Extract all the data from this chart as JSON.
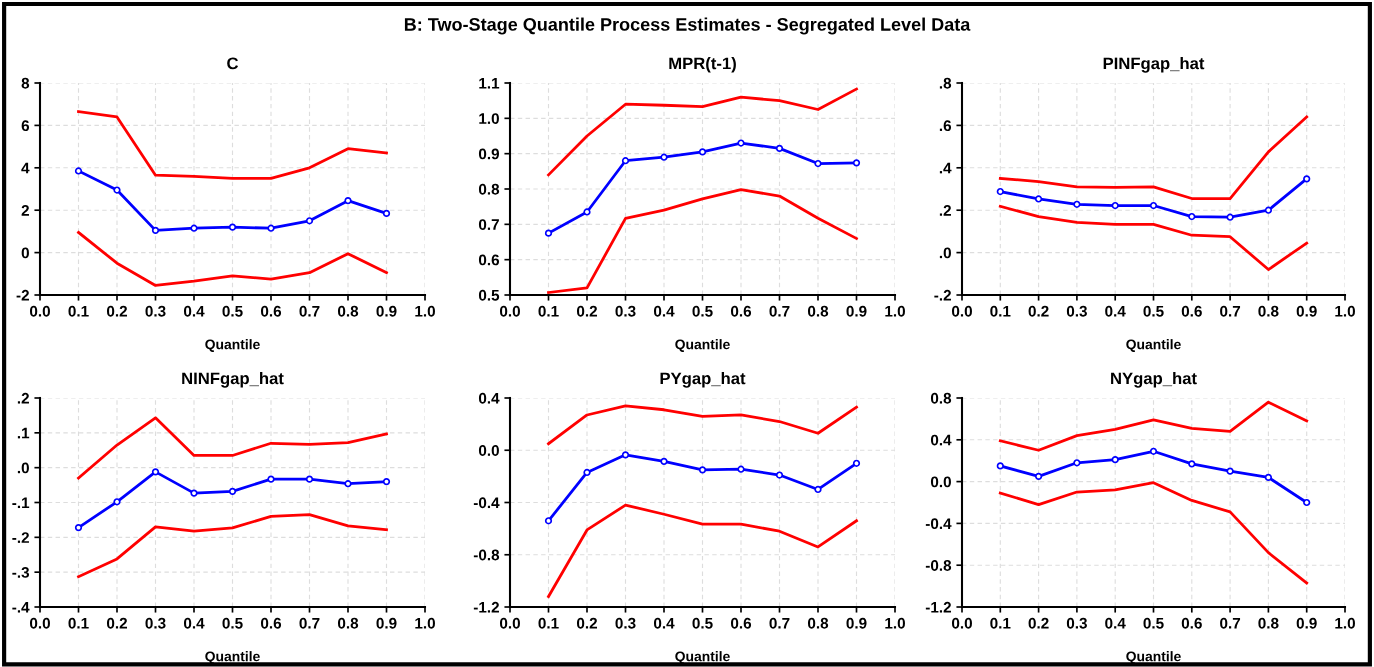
{
  "chart_data": [
    {
      "type": "line",
      "title": "C",
      "xlabel": "Quantile",
      "annotations": [
        "B: Two-Stage Quantile Process Estimates - Segregated Level Data"
      ],
      "x": [
        0.1,
        0.2,
        0.3,
        0.4,
        0.5,
        0.6,
        0.7,
        0.8,
        0.9
      ],
      "grid": true,
      "legend": false,
      "xlim": [
        0.0,
        1.0
      ],
      "xticks": [
        {
          "value": 0.0,
          "label": "0.0"
        },
        {
          "value": 0.1,
          "label": "0.1"
        },
        {
          "value": 0.2,
          "label": "0.2"
        },
        {
          "value": 0.3,
          "label": "0.3"
        },
        {
          "value": 0.4,
          "label": "0.4"
        },
        {
          "value": 0.5,
          "label": "0.5"
        },
        {
          "value": 0.6,
          "label": "0.6"
        },
        {
          "value": 0.7,
          "label": "0.7"
        },
        {
          "value": 0.8,
          "label": "0.8"
        },
        {
          "value": 0.9,
          "label": "0.9"
        },
        {
          "value": 1.0,
          "label": "1.0"
        }
      ],
      "ylim": [
        -2,
        8
      ],
      "yticks": [
        -2,
        0,
        2,
        4,
        6,
        8
      ],
      "series": [
        {
          "color": "#ff0000",
          "marker": "none",
          "values": [
            6.65,
            6.4,
            3.65,
            3.6,
            3.5,
            3.5,
            4.0,
            4.9,
            4.7
          ]
        },
        {
          "color": "#0000ff",
          "marker": "circle",
          "values": [
            3.85,
            2.95,
            1.05,
            1.15,
            1.2,
            1.15,
            1.5,
            2.45,
            1.85
          ]
        },
        {
          "color": "#ff0000",
          "marker": "none",
          "values": [
            0.95,
            -0.5,
            -1.55,
            -1.35,
            -1.1,
            -1.25,
            -0.95,
            -0.05,
            -0.95
          ]
        }
      ]
    },
    {
      "type": "line",
      "title": "MPR(t-1)",
      "xlabel": "Quantile",
      "x": [
        0.1,
        0.2,
        0.3,
        0.4,
        0.5,
        0.6,
        0.7,
        0.8,
        0.9
      ],
      "grid": true,
      "legend": false,
      "xlim": [
        0.0,
        1.0
      ],
      "xticks": [
        {
          "value": 0.0,
          "label": "0.0"
        },
        {
          "value": 0.1,
          "label": "0.1"
        },
        {
          "value": 0.2,
          "label": "0.2"
        },
        {
          "value": 0.3,
          "label": "0.3"
        },
        {
          "value": 0.4,
          "label": "0.4"
        },
        {
          "value": 0.5,
          "label": "0.5"
        },
        {
          "value": 0.6,
          "label": "0.6"
        },
        {
          "value": 0.7,
          "label": "0.7"
        },
        {
          "value": 0.8,
          "label": "0.8"
        },
        {
          "value": 0.9,
          "label": "0.9"
        },
        {
          "value": 1.0,
          "label": "1.0"
        }
      ],
      "ylim": [
        0.5,
        1.1
      ],
      "yticks": [
        {
          "value": 0.5,
          "label": "0.5"
        },
        {
          "value": 0.6,
          "label": "0.6"
        },
        {
          "value": 0.7,
          "label": "0.7"
        },
        {
          "value": 0.8,
          "label": "0.8"
        },
        {
          "value": 0.9,
          "label": "0.9"
        },
        {
          "value": 1.0,
          "label": "1.0"
        },
        {
          "value": 1.1,
          "label": "1.1"
        }
      ],
      "series": [
        {
          "color": "#ff0000",
          "marker": "none",
          "values": [
            0.84,
            0.95,
            1.04,
            1.037,
            1.033,
            1.06,
            1.05,
            1.025,
            1.083
          ]
        },
        {
          "color": "#0000ff",
          "marker": "circle",
          "values": [
            0.675,
            0.735,
            0.88,
            0.89,
            0.905,
            0.93,
            0.915,
            0.872,
            0.874
          ]
        },
        {
          "color": "#ff0000",
          "marker": "none",
          "values": [
            0.507,
            0.52,
            0.717,
            0.74,
            0.772,
            0.798,
            0.78,
            0.717,
            0.66
          ]
        }
      ]
    },
    {
      "type": "line",
      "title": "PINFgap_hat",
      "xlabel": "Quantile",
      "x": [
        0.1,
        0.2,
        0.3,
        0.4,
        0.5,
        0.6,
        0.7,
        0.8,
        0.9
      ],
      "grid": true,
      "legend": false,
      "xlim": [
        0.0,
        1.0
      ],
      "xticks": [
        {
          "value": 0.0,
          "label": "0.0"
        },
        {
          "value": 0.1,
          "label": "0.1"
        },
        {
          "value": 0.2,
          "label": "0.2"
        },
        {
          "value": 0.3,
          "label": "0.3"
        },
        {
          "value": 0.4,
          "label": "0.4"
        },
        {
          "value": 0.5,
          "label": "0.5"
        },
        {
          "value": 0.6,
          "label": "0.6"
        },
        {
          "value": 0.7,
          "label": "0.7"
        },
        {
          "value": 0.8,
          "label": "0.8"
        },
        {
          "value": 0.9,
          "label": "0.9"
        },
        {
          "value": 1.0,
          "label": "1.0"
        }
      ],
      "ylim": [
        -0.2,
        0.8
      ],
      "yticks": [
        {
          "value": -0.2,
          "label": "-.2"
        },
        {
          "value": 0.0,
          "label": ".0"
        },
        {
          "value": 0.2,
          "label": ".2"
        },
        {
          "value": 0.4,
          "label": ".4"
        },
        {
          "value": 0.6,
          "label": ".6"
        },
        {
          "value": 0.8,
          "label": ".8"
        }
      ],
      "series": [
        {
          "color": "#ff0000",
          "marker": "none",
          "values": [
            0.35,
            0.335,
            0.31,
            0.308,
            0.31,
            0.255,
            0.255,
            0.475,
            0.64
          ]
        },
        {
          "color": "#0000ff",
          "marker": "circle",
          "values": [
            0.288,
            0.253,
            0.228,
            0.222,
            0.222,
            0.17,
            0.167,
            0.2,
            0.348
          ]
        },
        {
          "color": "#ff0000",
          "marker": "none",
          "values": [
            0.218,
            0.17,
            0.143,
            0.133,
            0.133,
            0.082,
            0.075,
            -0.08,
            0.045
          ]
        }
      ]
    },
    {
      "type": "line",
      "title": "NINFgap_hat",
      "xlabel": "Quantile",
      "x": [
        0.1,
        0.2,
        0.3,
        0.4,
        0.5,
        0.6,
        0.7,
        0.8,
        0.9
      ],
      "grid": true,
      "legend": false,
      "xlim": [
        0.0,
        1.0
      ],
      "xticks": [
        {
          "value": 0.0,
          "label": "0.0"
        },
        {
          "value": 0.1,
          "label": "0.1"
        },
        {
          "value": 0.2,
          "label": "0.2"
        },
        {
          "value": 0.3,
          "label": "0.3"
        },
        {
          "value": 0.4,
          "label": "0.4"
        },
        {
          "value": 0.5,
          "label": "0.5"
        },
        {
          "value": 0.6,
          "label": "0.6"
        },
        {
          "value": 0.7,
          "label": "0.7"
        },
        {
          "value": 0.8,
          "label": "0.8"
        },
        {
          "value": 0.9,
          "label": "0.9"
        },
        {
          "value": 1.0,
          "label": "1.0"
        }
      ],
      "ylim": [
        -0.4,
        0.2
      ],
      "yticks": [
        {
          "value": -0.4,
          "label": "-.4"
        },
        {
          "value": -0.3,
          "label": "-.3"
        },
        {
          "value": -0.2,
          "label": "-.2"
        },
        {
          "value": -0.1,
          "label": "-.1"
        },
        {
          "value": 0.0,
          "label": ".0"
        },
        {
          "value": 0.1,
          "label": ".1"
        },
        {
          "value": 0.2,
          "label": ".2"
        }
      ],
      "series": [
        {
          "color": "#ff0000",
          "marker": "none",
          "values": [
            -0.03,
            0.065,
            0.143,
            0.035,
            0.035,
            0.07,
            0.067,
            0.072,
            0.097
          ]
        },
        {
          "color": "#0000ff",
          "marker": "circle",
          "values": [
            -0.172,
            -0.098,
            -0.012,
            -0.073,
            -0.068,
            -0.033,
            -0.033,
            -0.046,
            -0.04
          ]
        },
        {
          "color": "#ff0000",
          "marker": "none",
          "values": [
            -0.313,
            -0.262,
            -0.17,
            -0.182,
            -0.173,
            -0.14,
            -0.135,
            -0.167,
            -0.178
          ]
        }
      ]
    },
    {
      "type": "line",
      "title": "PYgap_hat",
      "xlabel": "Quantile",
      "x": [
        0.1,
        0.2,
        0.3,
        0.4,
        0.5,
        0.6,
        0.7,
        0.8,
        0.9
      ],
      "grid": true,
      "legend": false,
      "xlim": [
        0.0,
        1.0
      ],
      "xticks": [
        {
          "value": 0.0,
          "label": "0.0"
        },
        {
          "value": 0.1,
          "label": "0.1"
        },
        {
          "value": 0.2,
          "label": "0.2"
        },
        {
          "value": 0.3,
          "label": "0.3"
        },
        {
          "value": 0.4,
          "label": "0.4"
        },
        {
          "value": 0.5,
          "label": "0.5"
        },
        {
          "value": 0.6,
          "label": "0.6"
        },
        {
          "value": 0.7,
          "label": "0.7"
        },
        {
          "value": 0.8,
          "label": "0.8"
        },
        {
          "value": 0.9,
          "label": "0.9"
        },
        {
          "value": 1.0,
          "label": "1.0"
        }
      ],
      "ylim": [
        -1.2,
        0.4
      ],
      "yticks": [
        {
          "value": -1.2,
          "label": "-1.2"
        },
        {
          "value": -0.8,
          "label": "-0.8"
        },
        {
          "value": -0.4,
          "label": "-0.4"
        },
        {
          "value": 0.0,
          "label": "0.0"
        },
        {
          "value": 0.4,
          "label": "0.4"
        }
      ],
      "series": [
        {
          "color": "#ff0000",
          "marker": "none",
          "values": [
            0.05,
            0.27,
            0.34,
            0.31,
            0.26,
            0.27,
            0.22,
            0.13,
            0.33
          ]
        },
        {
          "color": "#0000ff",
          "marker": "circle",
          "values": [
            -0.54,
            -0.17,
            -0.035,
            -0.085,
            -0.15,
            -0.145,
            -0.19,
            -0.3,
            -0.1
          ]
        },
        {
          "color": "#ff0000",
          "marker": "none",
          "values": [
            -1.12,
            -0.61,
            -0.42,
            -0.49,
            -0.565,
            -0.565,
            -0.62,
            -0.74,
            -0.54
          ]
        }
      ]
    },
    {
      "type": "line",
      "title": "NYgap_hat",
      "xlabel": "Quantile",
      "x": [
        0.1,
        0.2,
        0.3,
        0.4,
        0.5,
        0.6,
        0.7,
        0.8,
        0.9
      ],
      "grid": true,
      "legend": false,
      "xlim": [
        0.0,
        1.0
      ],
      "xticks": [
        {
          "value": 0.0,
          "label": "0.0"
        },
        {
          "value": 0.1,
          "label": "0.1"
        },
        {
          "value": 0.2,
          "label": "0.2"
        },
        {
          "value": 0.3,
          "label": "0.3"
        },
        {
          "value": 0.4,
          "label": "0.4"
        },
        {
          "value": 0.5,
          "label": "0.5"
        },
        {
          "value": 0.6,
          "label": "0.6"
        },
        {
          "value": 0.7,
          "label": "0.7"
        },
        {
          "value": 0.8,
          "label": "0.8"
        },
        {
          "value": 0.9,
          "label": "0.9"
        },
        {
          "value": 1.0,
          "label": "1.0"
        }
      ],
      "ylim": [
        -1.2,
        0.8
      ],
      "yticks": [
        {
          "value": -1.2,
          "label": "-1.2"
        },
        {
          "value": -0.8,
          "label": "-0.8"
        },
        {
          "value": -0.4,
          "label": "-0.4"
        },
        {
          "value": 0.0,
          "label": "0.0"
        },
        {
          "value": 0.4,
          "label": "0.4"
        },
        {
          "value": 0.8,
          "label": "0.8"
        }
      ],
      "series": [
        {
          "color": "#ff0000",
          "marker": "none",
          "values": [
            0.39,
            0.3,
            0.44,
            0.5,
            0.59,
            0.51,
            0.48,
            0.76,
            0.58
          ]
        },
        {
          "color": "#0000ff",
          "marker": "circle",
          "values": [
            0.15,
            0.05,
            0.18,
            0.21,
            0.29,
            0.17,
            0.1,
            0.04,
            -0.2
          ]
        },
        {
          "color": "#ff0000",
          "marker": "none",
          "values": [
            -0.11,
            -0.22,
            -0.1,
            -0.08,
            -0.01,
            -0.18,
            -0.29,
            -0.68,
            -0.97
          ]
        }
      ]
    }
  ]
}
